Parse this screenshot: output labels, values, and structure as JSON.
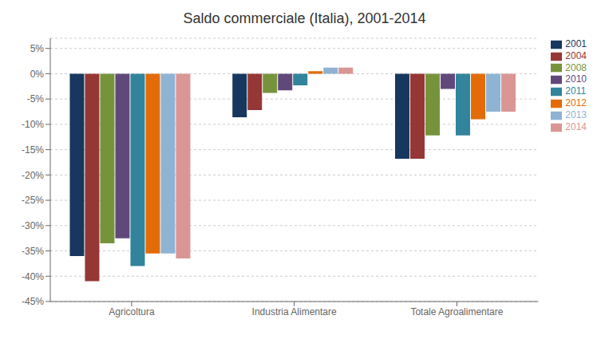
{
  "chart_data": {
    "type": "bar",
    "title": "Saldo commerciale (Italia), 2001-2014",
    "categories": [
      "Agricoltura",
      "Industria Alimentare",
      "Totale Agroalimentare"
    ],
    "series": [
      {
        "name": "2001",
        "color": "#17375E",
        "values": [
          -0.36,
          -0.086,
          -0.168
        ]
      },
      {
        "name": "2004",
        "color": "#953735",
        "values": [
          -0.41,
          -0.072,
          -0.168
        ]
      },
      {
        "name": "2008",
        "color": "#76933C",
        "values": [
          -0.335,
          -0.038,
          -0.122
        ]
      },
      {
        "name": "2010",
        "color": "#60497A",
        "values": [
          -0.325,
          -0.033,
          -0.03
        ]
      },
      {
        "name": "2011",
        "color": "#31849B",
        "values": [
          -0.38,
          -0.023,
          -0.122
        ]
      },
      {
        "name": "2012",
        "color": "#E36C09",
        "values": [
          -0.355,
          0.005,
          -0.09
        ]
      },
      {
        "name": "2013",
        "color": "#8EB3D3",
        "values": [
          -0.355,
          0.012,
          -0.075
        ]
      },
      {
        "name": "2014",
        "color": "#D99694",
        "values": [
          -0.365,
          0.012,
          -0.075
        ]
      }
    ],
    "ylim": [
      -0.45,
      0.07
    ],
    "yticks": [
      {
        "value": -0.45,
        "label": "-45%"
      },
      {
        "value": -0.4,
        "label": "-40%"
      },
      {
        "value": -0.35,
        "label": "-35%"
      },
      {
        "value": -0.3,
        "label": "-30%"
      },
      {
        "value": -0.25,
        "label": "-25%"
      },
      {
        "value": -0.2,
        "label": "-20%"
      },
      {
        "value": -0.15,
        "label": "-15%"
      },
      {
        "value": -0.1,
        "label": "-10%"
      },
      {
        "value": -0.05,
        "label": "-5%"
      },
      {
        "value": 0.0,
        "label": "0%"
      },
      {
        "value": 0.05,
        "label": "5%"
      }
    ],
    "grid": true,
    "legend": "right"
  }
}
